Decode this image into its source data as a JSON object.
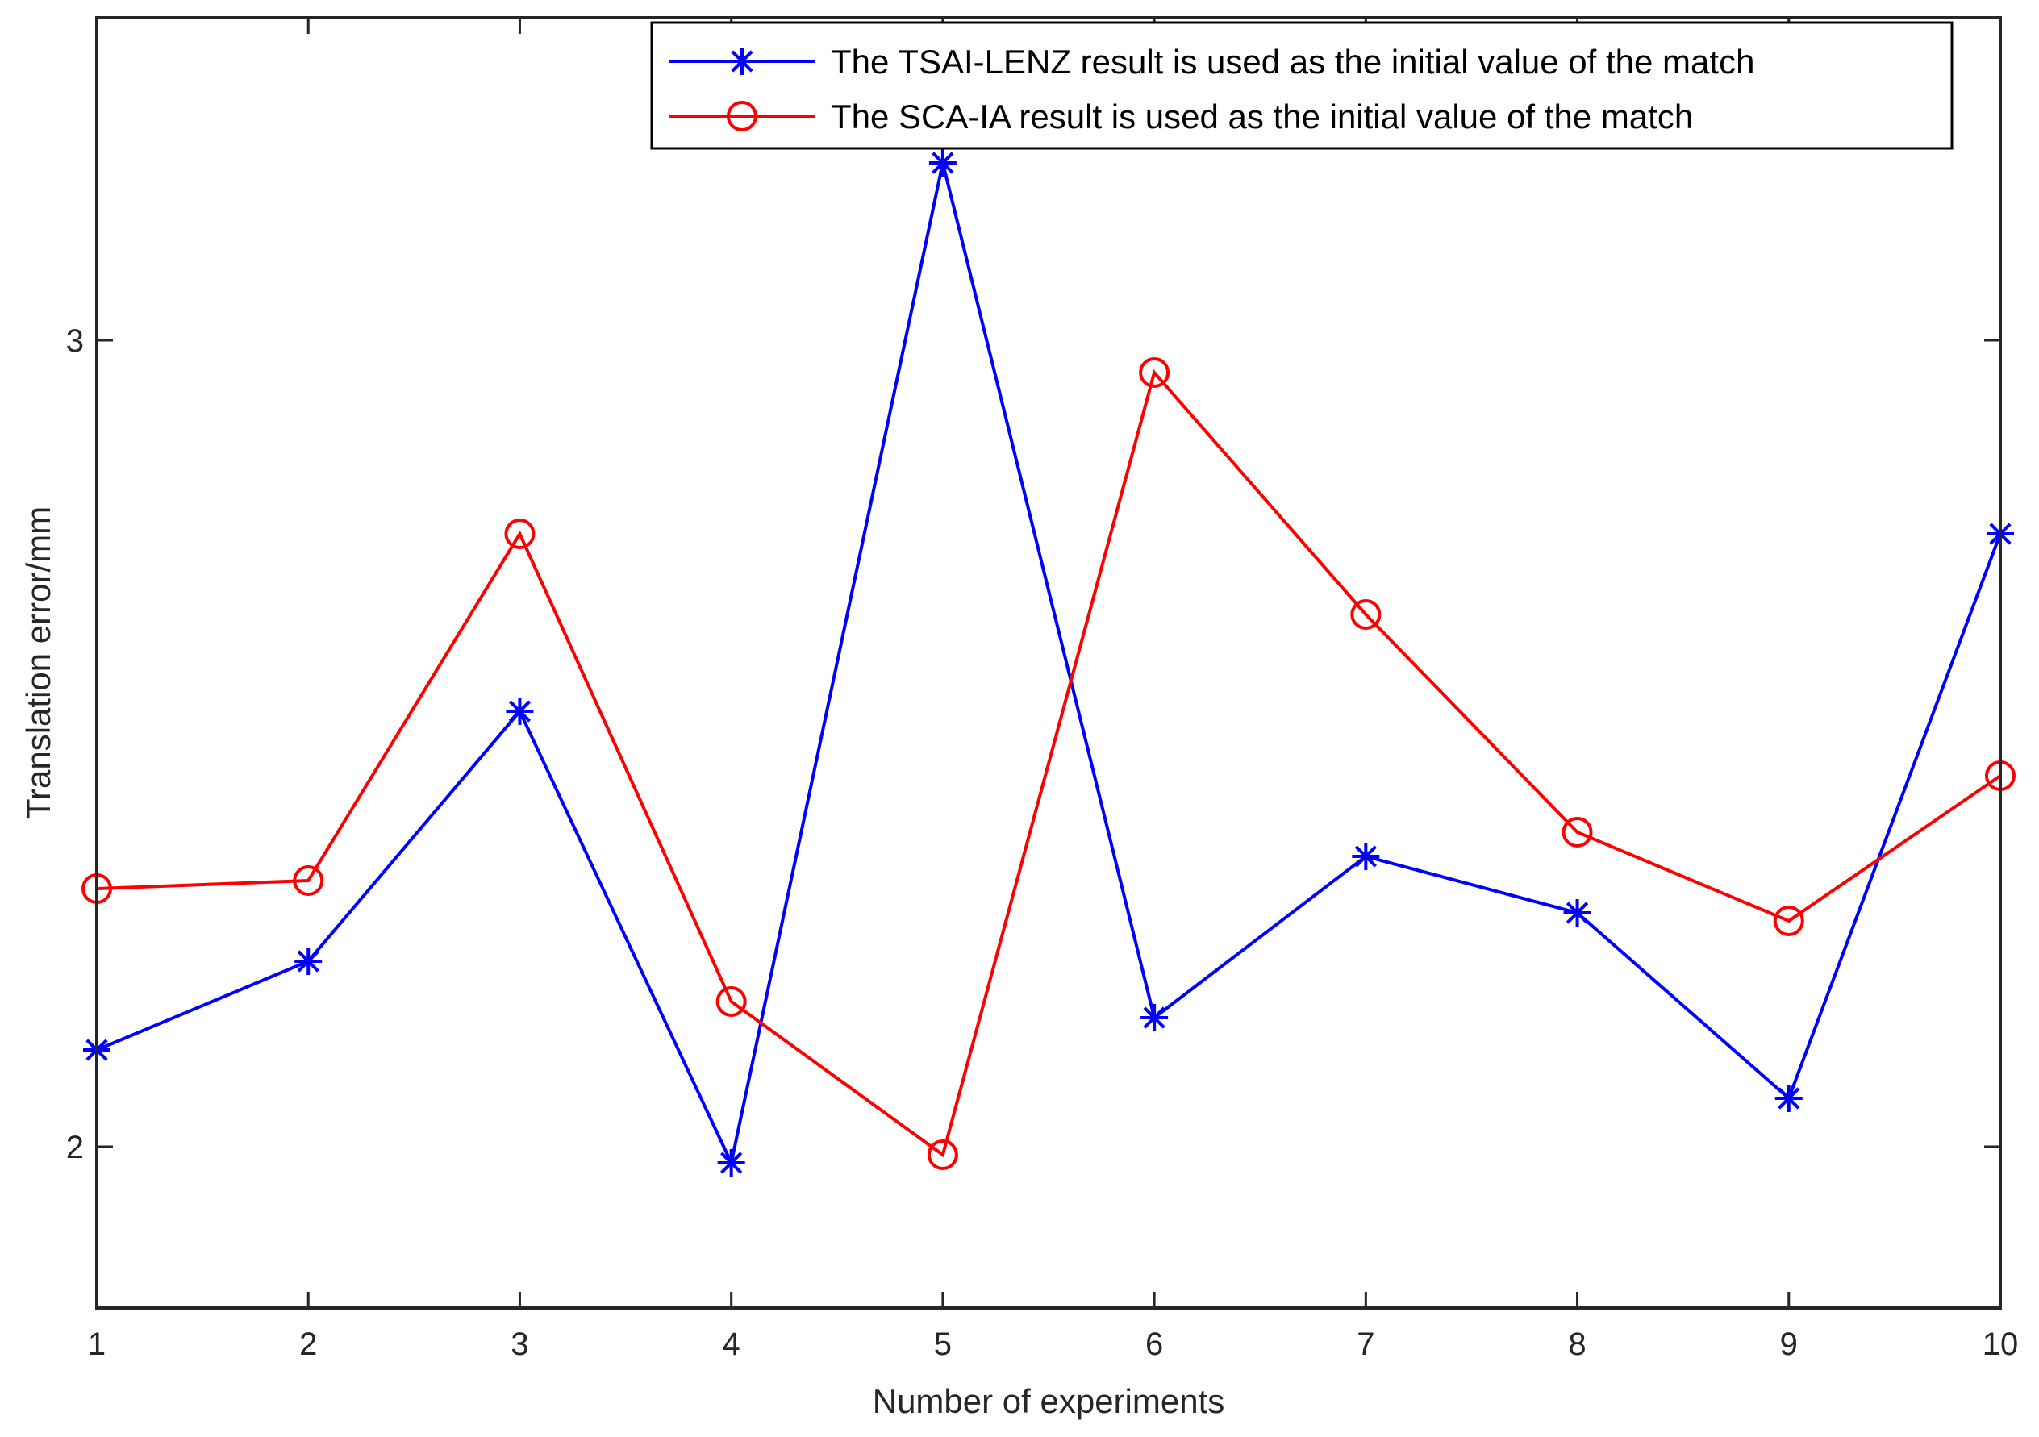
{
  "chart_data": {
    "type": "line",
    "title": "",
    "xlabel": "Number of experiments",
    "ylabel": "Translation error/mm",
    "x": [
      1,
      2,
      3,
      4,
      5,
      6,
      7,
      8,
      9,
      10
    ],
    "xlim": [
      1,
      10
    ],
    "ylim": [
      1.8,
      3.4
    ],
    "x_ticks": [
      "1",
      "2",
      "3",
      "4",
      "5",
      "6",
      "7",
      "8",
      "9",
      "10"
    ],
    "y_ticks": [
      {
        "value": 2,
        "label": "2"
      },
      {
        "value": 3,
        "label": "3"
      }
    ],
    "grid": false,
    "legend_position": "top-right",
    "series": [
      {
        "name": "The TSAI-LENZ result is used as the initial value of the match",
        "color": "#0000ff",
        "marker": "asterisk",
        "values": [
          2.12,
          2.23,
          2.54,
          1.98,
          3.22,
          2.16,
          2.36,
          2.29,
          2.06,
          2.76
        ]
      },
      {
        "name": "The SCA-IA result is used as the initial value of the match",
        "color": "#ff0000",
        "marker": "circle",
        "values": [
          2.32,
          2.33,
          2.76,
          2.18,
          1.99,
          2.96,
          2.66,
          2.39,
          2.28,
          2.46
        ]
      }
    ]
  }
}
